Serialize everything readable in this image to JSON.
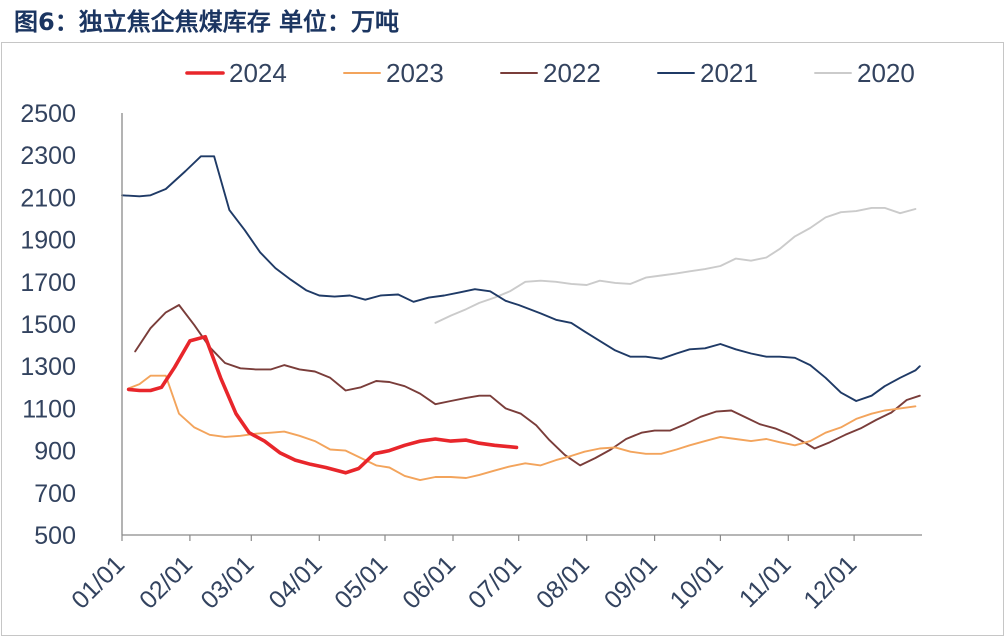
{
  "chart_data": {
    "type": "line",
    "title": "图6：独立焦企焦煤库存 单位：万吨",
    "xlim": [
      "01/01",
      "12/31"
    ],
    "ylim": [
      500,
      2500
    ],
    "yticks": [
      500,
      700,
      900,
      1100,
      1300,
      1500,
      1700,
      1900,
      2100,
      2300,
      2500
    ],
    "xticks": [
      "01/01",
      "02/01",
      "03/01",
      "04/01",
      "05/01",
      "06/01",
      "07/01",
      "08/01",
      "09/01",
      "10/01",
      "11/01",
      "12/01"
    ],
    "legend": "top",
    "grid": false,
    "series": [
      {
        "name": "2024",
        "color": "#e8262b",
        "x": [
          "01/04",
          "01/09",
          "01/14",
          "01/19",
          "01/25",
          "02/01",
          "02/08",
          "02/15",
          "02/22",
          "02/28",
          "03/07",
          "03/14",
          "03/21",
          "03/28",
          "04/04",
          "04/13",
          "04/19",
          "04/26",
          "05/03",
          "05/10",
          "05/17",
          "05/24",
          "05/31",
          "06/07",
          "06/13",
          "06/20",
          "06/30"
        ],
        "y": [
          1190,
          1185,
          1185,
          1200,
          1295,
          1420,
          1440,
          1245,
          1075,
          985,
          945,
          890,
          855,
          835,
          820,
          795,
          815,
          885,
          900,
          925,
          945,
          955,
          945,
          950,
          935,
          925,
          915
        ]
      },
      {
        "name": "2023",
        "color": "#f3a45c",
        "x": [
          "01/04",
          "01/09",
          "01/14",
          "01/21",
          "01/27",
          "02/03",
          "02/10",
          "02/17",
          "02/24",
          "03/03",
          "03/10",
          "03/16",
          "03/23",
          "03/30",
          "04/06",
          "04/13",
          "04/20",
          "04/27",
          "05/03",
          "05/10",
          "05/17",
          "05/24",
          "05/31",
          "06/07",
          "06/13",
          "06/20",
          "06/27",
          "07/04",
          "07/11",
          "07/18",
          "07/25",
          "07/31",
          "08/07",
          "08/14",
          "08/21",
          "08/28",
          "09/04",
          "09/11",
          "09/17",
          "09/24",
          "10/01",
          "10/08",
          "10/15",
          "10/22",
          "10/28",
          "11/04",
          "11/11",
          "11/18",
          "11/25",
          "12/02",
          "12/09",
          "12/15",
          "12/22",
          "12/29"
        ],
        "y": [
          1195,
          1215,
          1255,
          1255,
          1075,
          1010,
          975,
          965,
          970,
          980,
          985,
          990,
          970,
          945,
          905,
          900,
          865,
          830,
          820,
          780,
          760,
          775,
          775,
          770,
          785,
          805,
          825,
          840,
          830,
          855,
          875,
          895,
          910,
          915,
          895,
          885,
          885,
          905,
          925,
          945,
          965,
          955,
          945,
          955,
          940,
          925,
          945,
          985,
          1010,
          1050,
          1075,
          1090,
          1100,
          1110
        ]
      },
      {
        "name": "2022",
        "color": "#7a3d3a",
        "x": [
          "01/07",
          "01/14",
          "01/21",
          "01/27",
          "02/03",
          "02/10",
          "02/17",
          "02/24",
          "03/03",
          "03/10",
          "03/16",
          "03/23",
          "03/30",
          "04/06",
          "04/13",
          "04/20",
          "04/27",
          "05/03",
          "05/10",
          "05/17",
          "05/24",
          "05/31",
          "06/07",
          "06/13",
          "06/18",
          "06/25",
          "07/02",
          "07/09",
          "07/15",
          "07/22",
          "07/29",
          "08/05",
          "08/12",
          "08/19",
          "08/26",
          "09/01",
          "09/08",
          "09/15",
          "09/22",
          "09/29",
          "10/06",
          "10/13",
          "10/19",
          "10/26",
          "11/02",
          "11/09",
          "11/13",
          "11/20",
          "11/27",
          "12/04",
          "12/11",
          "12/18",
          "12/25",
          "12/31"
        ],
        "y": [
          1370,
          1480,
          1555,
          1590,
          1495,
          1390,
          1315,
          1290,
          1285,
          1285,
          1305,
          1285,
          1275,
          1245,
          1185,
          1200,
          1230,
          1225,
          1205,
          1170,
          1120,
          1135,
          1150,
          1160,
          1160,
          1100,
          1075,
          1020,
          950,
          880,
          830,
          865,
          905,
          955,
          985,
          995,
          995,
          1025,
          1060,
          1085,
          1090,
          1055,
          1025,
          1005,
          975,
          935,
          910,
          940,
          975,
          1005,
          1045,
          1080,
          1140,
          1160
        ]
      },
      {
        "name": "2021",
        "color": "#1f3a66",
        "x": [
          "01/01",
          "01/09",
          "01/14",
          "01/21",
          "01/30",
          "02/06",
          "02/12",
          "02/19",
          "02/26",
          "03/05",
          "03/12",
          "03/19",
          "03/26",
          "04/01",
          "04/08",
          "04/15",
          "04/22",
          "04/29",
          "05/07",
          "05/14",
          "05/21",
          "05/28",
          "06/04",
          "06/11",
          "06/18",
          "06/25",
          "07/01",
          "07/11",
          "07/18",
          "07/25",
          "07/31",
          "08/07",
          "08/14",
          "08/21",
          "08/28",
          "09/04",
          "09/11",
          "09/17",
          "09/24",
          "10/01",
          "10/08",
          "10/15",
          "10/22",
          "10/28",
          "11/04",
          "11/11",
          "11/18",
          "11/25",
          "12/02",
          "12/09",
          "12/15",
          "12/22",
          "12/29",
          "12/31"
        ],
        "y": [
          2110,
          2105,
          2110,
          2140,
          2225,
          2295,
          2295,
          2040,
          1945,
          1840,
          1765,
          1710,
          1660,
          1635,
          1630,
          1635,
          1615,
          1635,
          1640,
          1605,
          1625,
          1635,
          1650,
          1665,
          1655,
          1610,
          1590,
          1550,
          1520,
          1505,
          1465,
          1420,
          1375,
          1345,
          1345,
          1335,
          1360,
          1380,
          1385,
          1405,
          1380,
          1360,
          1345,
          1345,
          1340,
          1305,
          1245,
          1175,
          1135,
          1160,
          1205,
          1245,
          1280,
          1300
        ]
      },
      {
        "name": "2020",
        "color": "#cbcbcb",
        "x": [
          "05/24",
          "05/31",
          "06/07",
          "06/13",
          "06/20",
          "06/27",
          "07/04",
          "07/11",
          "07/18",
          "07/25",
          "08/01",
          "08/07",
          "08/14",
          "08/21",
          "08/28",
          "09/04",
          "09/11",
          "09/17",
          "09/24",
          "10/01",
          "10/08",
          "10/15",
          "10/22",
          "10/28",
          "11/04",
          "11/11",
          "11/18",
          "11/25",
          "12/02",
          "12/09",
          "12/15",
          "12/22",
          "12/29"
        ],
        "y": [
          1505,
          1540,
          1570,
          1600,
          1625,
          1655,
          1700,
          1705,
          1700,
          1690,
          1685,
          1705,
          1695,
          1690,
          1720,
          1730,
          1740,
          1750,
          1760,
          1775,
          1810,
          1800,
          1815,
          1855,
          1915,
          1955,
          2005,
          2030,
          2035,
          2050,
          2050,
          2025,
          2045
        ]
      }
    ]
  }
}
